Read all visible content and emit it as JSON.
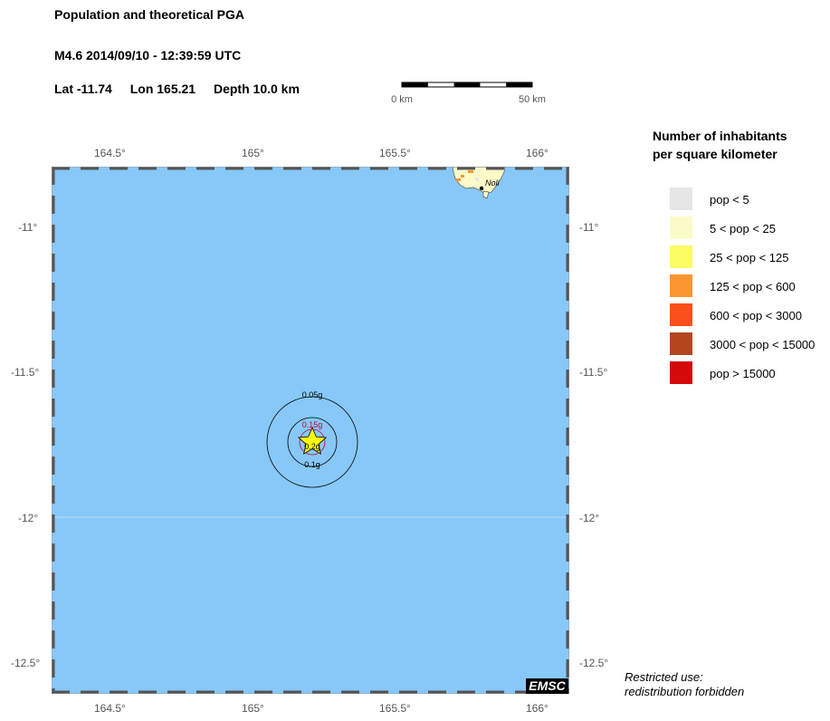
{
  "header": {
    "title": "Population and theoretical PGA",
    "event": "M4.6  2014/09/10 - 12:39:59 UTC",
    "lat": "Lat -11.74",
    "lon": "Lon 165.21",
    "depth": "Depth  10.0 km"
  },
  "scale": {
    "start_label": "0 km",
    "end_label": "50 km"
  },
  "map": {
    "lon_ticks": [
      "164.5°",
      "165°",
      "165.5°",
      "166°"
    ],
    "lat_ticks": [
      "-11°",
      "-11.5°",
      "-12°",
      "-12.5°"
    ],
    "place_label": "Noli",
    "epicenter": {
      "lat": -11.74,
      "lon": 165.21
    },
    "pga_contours": [
      {
        "label": "0.05g",
        "color": "#000000"
      },
      {
        "label": "0.15g",
        "color": "#cc0033"
      },
      {
        "label": "0.2g",
        "color": "#000000"
      },
      {
        "label": "0.1g",
        "color": "#000000"
      }
    ],
    "ocean_color": "#87c8f8",
    "watermark": "EMSC"
  },
  "legend": {
    "title_line1": "Number of inhabitants",
    "title_line2": "per square kilometer",
    "items": [
      {
        "label": "pop < 5",
        "color": "#e6e6e6"
      },
      {
        "label": "5 < pop < 25",
        "color": "#fbfbc8"
      },
      {
        "label": "25 < pop < 125",
        "color": "#fbfb64"
      },
      {
        "label": "125 < pop < 600",
        "color": "#fb9632"
      },
      {
        "label": "600 < pop < 3000",
        "color": "#fb5019"
      },
      {
        "label": "3000 < pop < 15000",
        "color": "#b4461e"
      },
      {
        "label": "pop > 15000",
        "color": "#d20a0a"
      }
    ]
  },
  "footer": {
    "restricted_line1": "Restricted use:",
    "restricted_line2": "redistribution forbidden"
  }
}
